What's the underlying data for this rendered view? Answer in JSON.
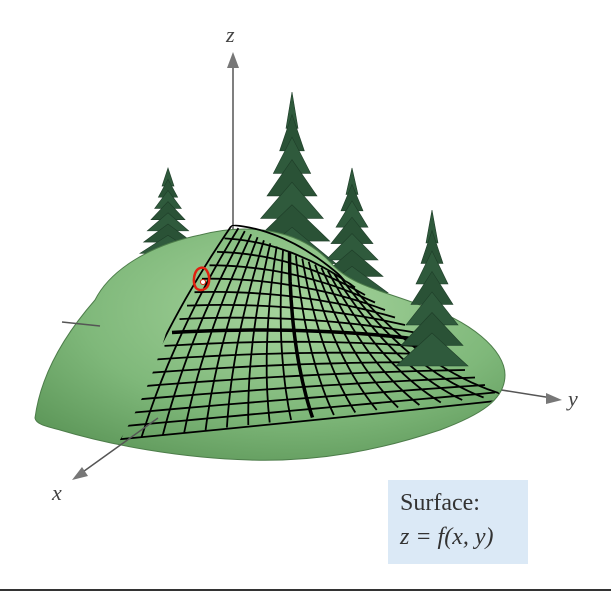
{
  "axes": {
    "x_label": "x",
    "y_label": "y",
    "z_label": "z"
  },
  "caption": {
    "title": "Surface:",
    "equation": "z = f(x, y)"
  },
  "colors": {
    "hill": "#7fb87a",
    "hill_dark": "#5c9658",
    "grid": "#000000",
    "tree": "#2f5a3c",
    "trunk": "#6b3a2a",
    "caption_bg": "#dbe9f6",
    "axis": "#555555",
    "marker": "#e02010"
  },
  "icons": {
    "tree": "pine-tree-icon",
    "marker": "cursor-marker-icon"
  }
}
